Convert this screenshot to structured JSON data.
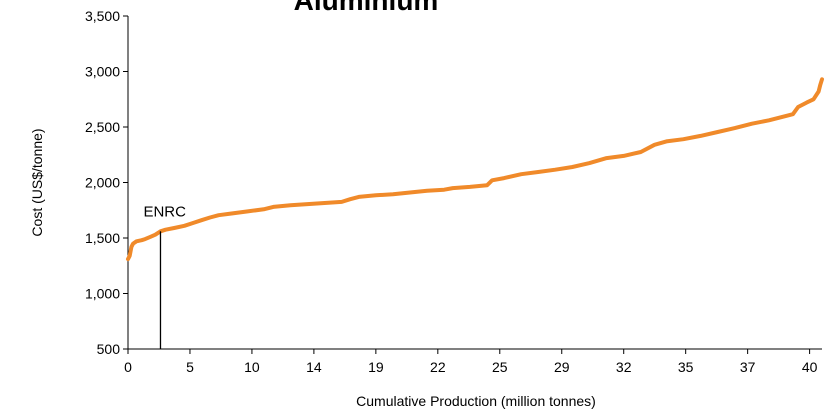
{
  "chart_data": {
    "type": "line",
    "title": "Aluminium",
    "xlabel": "Cumulative Production (million tonnes)",
    "ylabel": "Cost (US$/tonne)",
    "ylim": [
      500,
      3500
    ],
    "xlim": [
      0,
      40.6
    ],
    "y_ticks": [
      "500",
      "1,000",
      "1,500",
      "2,000",
      "2,500",
      "3,000",
      "3,500"
    ],
    "y_tick_values": [
      500,
      1000,
      1500,
      2000,
      2500,
      3000,
      3500
    ],
    "x_ticks": [
      "0",
      "5",
      "10",
      "14",
      "19",
      "22",
      "25",
      "29",
      "32",
      "35",
      "37",
      "40"
    ],
    "grid": false,
    "legend": "none",
    "series_color": "#F08A2A",
    "annotation": {
      "label": "ENRC",
      "x": 1.9,
      "y": 1560
    },
    "series": [
      {
        "x": [
          0.0,
          0.1,
          0.2,
          0.3,
          0.5,
          0.8,
          1.0,
          1.3,
          1.6,
          1.8,
          1.9,
          2.2,
          2.7,
          3.3,
          3.8,
          4.3,
          4.8,
          5.3,
          6.0,
          7.0,
          8.0,
          8.5,
          9.5,
          10.5,
          11.5,
          12.5,
          13.0,
          13.5,
          14.5,
          15.5,
          16.5,
          17.5,
          18.5,
          19.0,
          20.0,
          21.0,
          21.3,
          22.0,
          23.0,
          24.0,
          25.0,
          26.0,
          27.0,
          28.0,
          29.0,
          30.0,
          30.8,
          31.5,
          32.5,
          33.5,
          34.5,
          35.5,
          36.5,
          37.5,
          38.5,
          38.9,
          39.2,
          39.7,
          40.1,
          40.4,
          40.5,
          40.6
        ],
        "values": [
          1310,
          1340,
          1420,
          1450,
          1470,
          1480,
          1490,
          1510,
          1530,
          1550,
          1560,
          1575,
          1590,
          1610,
          1635,
          1660,
          1685,
          1705,
          1720,
          1740,
          1760,
          1780,
          1795,
          1805,
          1815,
          1825,
          1850,
          1870,
          1885,
          1895,
          1910,
          1925,
          1935,
          1950,
          1960,
          1975,
          2020,
          2040,
          2075,
          2095,
          2115,
          2140,
          2175,
          2220,
          2240,
          2275,
          2340,
          2370,
          2390,
          2420,
          2455,
          2490,
          2530,
          2560,
          2600,
          2615,
          2680,
          2720,
          2750,
          2820,
          2880,
          2930
        ]
      }
    ]
  }
}
